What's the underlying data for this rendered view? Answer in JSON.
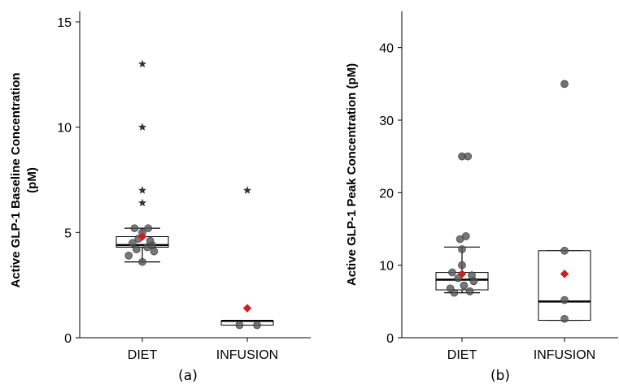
{
  "chart_data": [
    {
      "type": "box",
      "panel_label": "(a)",
      "ylabel_line1": "Active GLP-1 Baseline Concentration",
      "ylabel_line2": "(pM)",
      "categories": [
        "DIET",
        "INFUSION"
      ],
      "ylim": [
        0,
        15.5
      ],
      "yticks": [
        0,
        5,
        10,
        15
      ],
      "grid": false,
      "boxes": [
        {
          "category": "DIET",
          "whisker_low": 3.6,
          "q1": 4.3,
          "median": 4.4,
          "q3": 4.8,
          "whisker_high": 5.2,
          "mean": 4.8
        },
        {
          "category": "INFUSION",
          "whisker_low": 0.6,
          "q1": 0.6,
          "median": 0.8,
          "q3": 0.8,
          "whisker_high": 0.8,
          "mean": 1.4
        }
      ],
      "outliers": [
        {
          "category": "DIET",
          "y": 6.4
        },
        {
          "category": "DIET",
          "y": 7.0
        },
        {
          "category": "DIET",
          "y": 10.0
        },
        {
          "category": "DIET",
          "y": 13.0
        },
        {
          "category": "INFUSION",
          "y": 7.0
        }
      ],
      "points": [
        {
          "category": "DIET",
          "offset": -0.14,
          "y": 3.9
        },
        {
          "category": "DIET",
          "offset": -0.06,
          "y": 4.2
        },
        {
          "category": "DIET",
          "offset": 0.05,
          "y": 4.3
        },
        {
          "category": "DIET",
          "offset": 0.1,
          "y": 4.4
        },
        {
          "category": "DIET",
          "offset": -0.1,
          "y": 4.5
        },
        {
          "category": "DIET",
          "offset": 0.08,
          "y": 4.6
        },
        {
          "category": "DIET",
          "offset": -0.04,
          "y": 4.7
        },
        {
          "category": "DIET",
          "offset": 0.12,
          "y": 4.1
        },
        {
          "category": "DIET",
          "offset": 0.0,
          "y": 5.0
        },
        {
          "category": "DIET",
          "offset": -0.08,
          "y": 5.2
        },
        {
          "category": "DIET",
          "offset": 0.06,
          "y": 5.2
        },
        {
          "category": "DIET",
          "offset": 0.0,
          "y": 3.6
        },
        {
          "category": "INFUSION",
          "offset": -0.08,
          "y": 0.6
        },
        {
          "category": "INFUSION",
          "offset": 0.1,
          "y": 0.6
        }
      ]
    },
    {
      "type": "box",
      "panel_label": "(b)",
      "ylabel_line1": "Active GLP-1 Peak Concentration (pM)",
      "ylabel_line2": "",
      "categories": [
        "DIET",
        "INFUSION"
      ],
      "ylim": [
        0,
        45
      ],
      "yticks": [
        0,
        10,
        20,
        30,
        40
      ],
      "grid": false,
      "boxes": [
        {
          "category": "DIET",
          "whisker_low": 6.2,
          "q1": 6.6,
          "median": 8.0,
          "q3": 9.0,
          "whisker_high": 12.5,
          "mean": 8.8
        },
        {
          "category": "INFUSION",
          "whisker_low": 2.4,
          "q1": 2.4,
          "median": 5.0,
          "q3": 12.0,
          "whisker_high": 12.0,
          "mean": 8.8
        }
      ],
      "outliers": [
        {
          "category": "DIET",
          "y": 25.0
        },
        {
          "category": "INFUSION",
          "y": 35.0
        }
      ],
      "points": [
        {
          "category": "DIET",
          "offset": -0.08,
          "y": 6.2
        },
        {
          "category": "DIET",
          "offset": 0.08,
          "y": 6.4
        },
        {
          "category": "DIET",
          "offset": -0.12,
          "y": 6.8
        },
        {
          "category": "DIET",
          "offset": 0.02,
          "y": 7.2
        },
        {
          "category": "DIET",
          "offset": 0.12,
          "y": 7.8
        },
        {
          "category": "DIET",
          "offset": -0.04,
          "y": 8.2
        },
        {
          "category": "DIET",
          "offset": 0.1,
          "y": 8.6
        },
        {
          "category": "DIET",
          "offset": -0.1,
          "y": 9.0
        },
        {
          "category": "DIET",
          "offset": 0.0,
          "y": 10.0
        },
        {
          "category": "DIET",
          "offset": 0.0,
          "y": 12.2
        },
        {
          "category": "DIET",
          "offset": -0.02,
          "y": 13.6
        },
        {
          "category": "DIET",
          "offset": 0.04,
          "y": 14.0
        },
        {
          "category": "DIET",
          "offset": 0.06,
          "y": 25.0
        },
        {
          "category": "INFUSION",
          "offset": 0.0,
          "y": 2.6
        },
        {
          "category": "INFUSION",
          "offset": 0.0,
          "y": 5.2
        },
        {
          "category": "INFUSION",
          "offset": 0.0,
          "y": 12.0
        }
      ]
    }
  ],
  "colors": {
    "point": "#555555",
    "mean_marker": "#cc1f1f",
    "axis": "#000000",
    "box_fill": "#ffffff"
  }
}
